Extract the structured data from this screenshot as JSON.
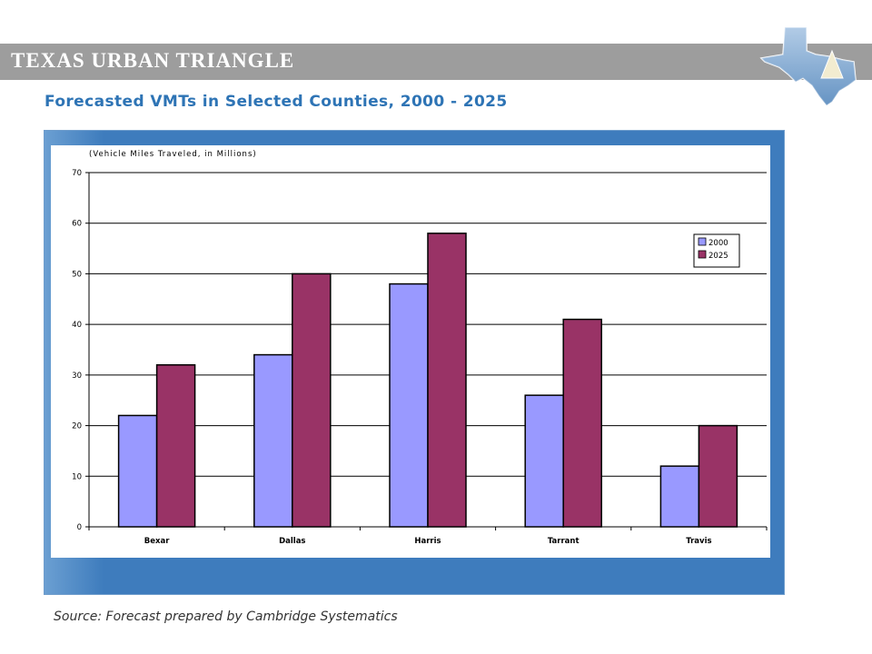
{
  "header": {
    "title": "TEXAS URBAN TRIANGLE",
    "logo_icon": "texas-map-triangle-icon"
  },
  "slide": {
    "title": "Forecasted VMTs in Selected Counties, 2000 - 2025",
    "source": "Source: Forecast prepared by Cambridge Systematics"
  },
  "colors": {
    "header_bar": "#9d9d9d",
    "title": "#2e74b5",
    "frame": "#3e7cbd",
    "series_2000": "#9999ff",
    "series_2025": "#993366"
  },
  "chart_data": {
    "type": "bar",
    "title": "",
    "subtitle": "(Vehicle Miles Traveled, in Millions)",
    "xlabel": "",
    "ylabel": "",
    "categories": [
      "Bexar",
      "Dallas",
      "Harris",
      "Tarrant",
      "Travis"
    ],
    "series": [
      {
        "name": "2000",
        "values": [
          22,
          34,
          48,
          26,
          12
        ],
        "color": "#9999ff"
      },
      {
        "name": "2025",
        "values": [
          32,
          50,
          58,
          41,
          20
        ],
        "color": "#993366"
      }
    ],
    "ylim": [
      0,
      70
    ],
    "yticks": [
      0,
      10,
      20,
      30,
      40,
      50,
      60,
      70
    ],
    "grid": true,
    "legend": "right"
  }
}
